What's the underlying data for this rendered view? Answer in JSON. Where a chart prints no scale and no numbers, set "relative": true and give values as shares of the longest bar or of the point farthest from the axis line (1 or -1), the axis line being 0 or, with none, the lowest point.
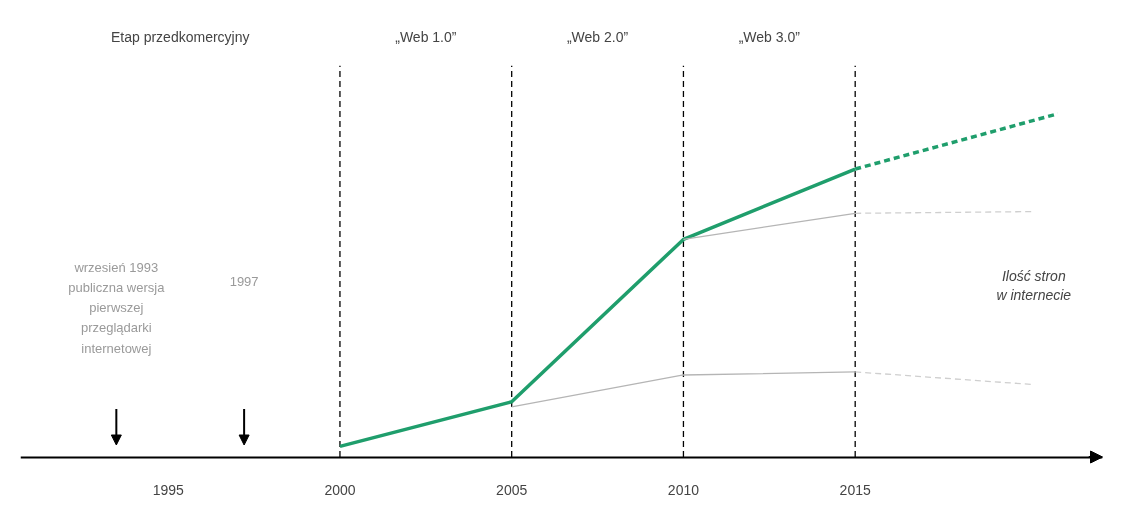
{
  "chart_data": {
    "type": "line",
    "relative": true,
    "xlim": [
      1990.7,
      2022.2
    ],
    "xticks": [
      1995,
      2000,
      2005,
      2010,
      2015
    ],
    "grid": false,
    "marker": "none",
    "series": [
      {
        "color": "#1f9e6c",
        "x": [
          2000,
          2005,
          2010,
          2015
        ],
        "values": [
          0.031,
          0.161,
          0.634,
          0.839
        ],
        "line_style": "solid"
      },
      {
        "color": "#1f9e6c",
        "x": [
          2015,
          2020.9
        ],
        "values": [
          0.839,
          1.0
        ],
        "line_style": "dashed"
      },
      {
        "color": "#b5b5b5",
        "x": [
          2010,
          2015
        ],
        "values": [
          0.634,
          0.71
        ],
        "line_style": "solid"
      },
      {
        "color": "#cfcfcf",
        "x": [
          2015,
          2020.2
        ],
        "values": [
          0.71,
          0.715
        ],
        "line_style": "dashed"
      },
      {
        "color": "#b5b5b5",
        "x": [
          2005,
          2010,
          2015
        ],
        "values": [
          0.146,
          0.239,
          0.248
        ],
        "line_style": "solid"
      },
      {
        "color": "#cfcfcf",
        "x": [
          2015,
          2020.2
        ],
        "values": [
          0.248,
          0.211
        ],
        "line_style": "dashed"
      }
    ],
    "ref_lines": [
      {
        "axis": "x",
        "value": 2000,
        "color": "#000000",
        "line_style": "dashed"
      },
      {
        "axis": "x",
        "value": 2005,
        "color": "#000000",
        "line_style": "dashed"
      },
      {
        "axis": "x",
        "value": 2010,
        "color": "#000000",
        "line_style": "dashed"
      },
      {
        "axis": "x",
        "value": 2015,
        "color": "#000000",
        "line_style": "dashed"
      }
    ],
    "annotations": [
      "Etap przedkomercyjny",
      "„Web 1.0”",
      "„Web 2.0”",
      "„Web 3.0”",
      "wrzesień 1993\npubliczna wersja\npierwszej\nprzeglądarki\ninternetowej",
      "1997",
      "Ilość stron\nw internecie"
    ]
  }
}
